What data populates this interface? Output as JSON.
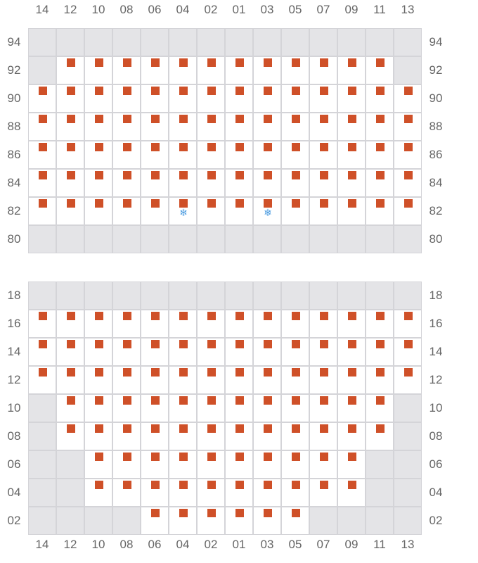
{
  "columns": [
    "14",
    "12",
    "10",
    "08",
    "06",
    "04",
    "02",
    "01",
    "03",
    "05",
    "07",
    "09",
    "11",
    "13"
  ],
  "colors": {
    "seat": "#cf5028",
    "blocked": "#e4e4e7",
    "grid": "#d4d4d8",
    "snowflake": "#4a9be0"
  },
  "legend_codes": {
    "g": "blocked",
    "s": "seat",
    "sf": "seat-with-snowflake-icon"
  },
  "blocks": [
    {
      "rows": [
        {
          "label": "94",
          "cells": [
            "g",
            "g",
            "g",
            "g",
            "g",
            "g",
            "g",
            "g",
            "g",
            "g",
            "g",
            "g",
            "g",
            "g"
          ]
        },
        {
          "label": "92",
          "cells": [
            "g",
            "s",
            "s",
            "s",
            "s",
            "s",
            "s",
            "s",
            "s",
            "s",
            "s",
            "s",
            "s",
            "g"
          ]
        },
        {
          "label": "90",
          "cells": [
            "s",
            "s",
            "s",
            "s",
            "s",
            "s",
            "s",
            "s",
            "s",
            "s",
            "s",
            "s",
            "s",
            "s"
          ]
        },
        {
          "label": "88",
          "cells": [
            "s",
            "s",
            "s",
            "s",
            "s",
            "s",
            "s",
            "s",
            "s",
            "s",
            "s",
            "s",
            "s",
            "s"
          ]
        },
        {
          "label": "86",
          "cells": [
            "s",
            "s",
            "s",
            "s",
            "s",
            "s",
            "s",
            "s",
            "s",
            "s",
            "s",
            "s",
            "s",
            "s"
          ]
        },
        {
          "label": "84",
          "cells": [
            "s",
            "s",
            "s",
            "s",
            "s",
            "s",
            "s",
            "s",
            "s",
            "s",
            "s",
            "s",
            "s",
            "s"
          ]
        },
        {
          "label": "82",
          "cells": [
            "s",
            "s",
            "s",
            "s",
            "s",
            "sf",
            "s",
            "s",
            "sf",
            "s",
            "s",
            "s",
            "s",
            "s"
          ]
        },
        {
          "label": "80",
          "cells": [
            "g",
            "g",
            "g",
            "g",
            "g",
            "g",
            "g",
            "g",
            "g",
            "g",
            "g",
            "g",
            "g",
            "g"
          ]
        }
      ]
    },
    {
      "rows": [
        {
          "label": "18",
          "cells": [
            "g",
            "g",
            "g",
            "g",
            "g",
            "g",
            "g",
            "g",
            "g",
            "g",
            "g",
            "g",
            "g",
            "g"
          ]
        },
        {
          "label": "16",
          "cells": [
            "s",
            "s",
            "s",
            "s",
            "s",
            "s",
            "s",
            "s",
            "s",
            "s",
            "s",
            "s",
            "s",
            "s"
          ]
        },
        {
          "label": "14",
          "cells": [
            "s",
            "s",
            "s",
            "s",
            "s",
            "s",
            "s",
            "s",
            "s",
            "s",
            "s",
            "s",
            "s",
            "s"
          ]
        },
        {
          "label": "12",
          "cells": [
            "s",
            "s",
            "s",
            "s",
            "s",
            "s",
            "s",
            "s",
            "s",
            "s",
            "s",
            "s",
            "s",
            "s"
          ]
        },
        {
          "label": "10",
          "cells": [
            "g",
            "s",
            "s",
            "s",
            "s",
            "s",
            "s",
            "s",
            "s",
            "s",
            "s",
            "s",
            "s",
            "g"
          ]
        },
        {
          "label": "08",
          "cells": [
            "g",
            "s",
            "s",
            "s",
            "s",
            "s",
            "s",
            "s",
            "s",
            "s",
            "s",
            "s",
            "s",
            "g"
          ]
        },
        {
          "label": "06",
          "cells": [
            "g",
            "g",
            "s",
            "s",
            "s",
            "s",
            "s",
            "s",
            "s",
            "s",
            "s",
            "s",
            "g",
            "g"
          ]
        },
        {
          "label": "04",
          "cells": [
            "g",
            "g",
            "s",
            "s",
            "s",
            "s",
            "s",
            "s",
            "s",
            "s",
            "s",
            "s",
            "g",
            "g"
          ]
        },
        {
          "label": "02",
          "cells": [
            "g",
            "g",
            "g",
            "g",
            "s",
            "s",
            "s",
            "s",
            "s",
            "s",
            "g",
            "g",
            "g",
            "g"
          ]
        }
      ]
    }
  ]
}
